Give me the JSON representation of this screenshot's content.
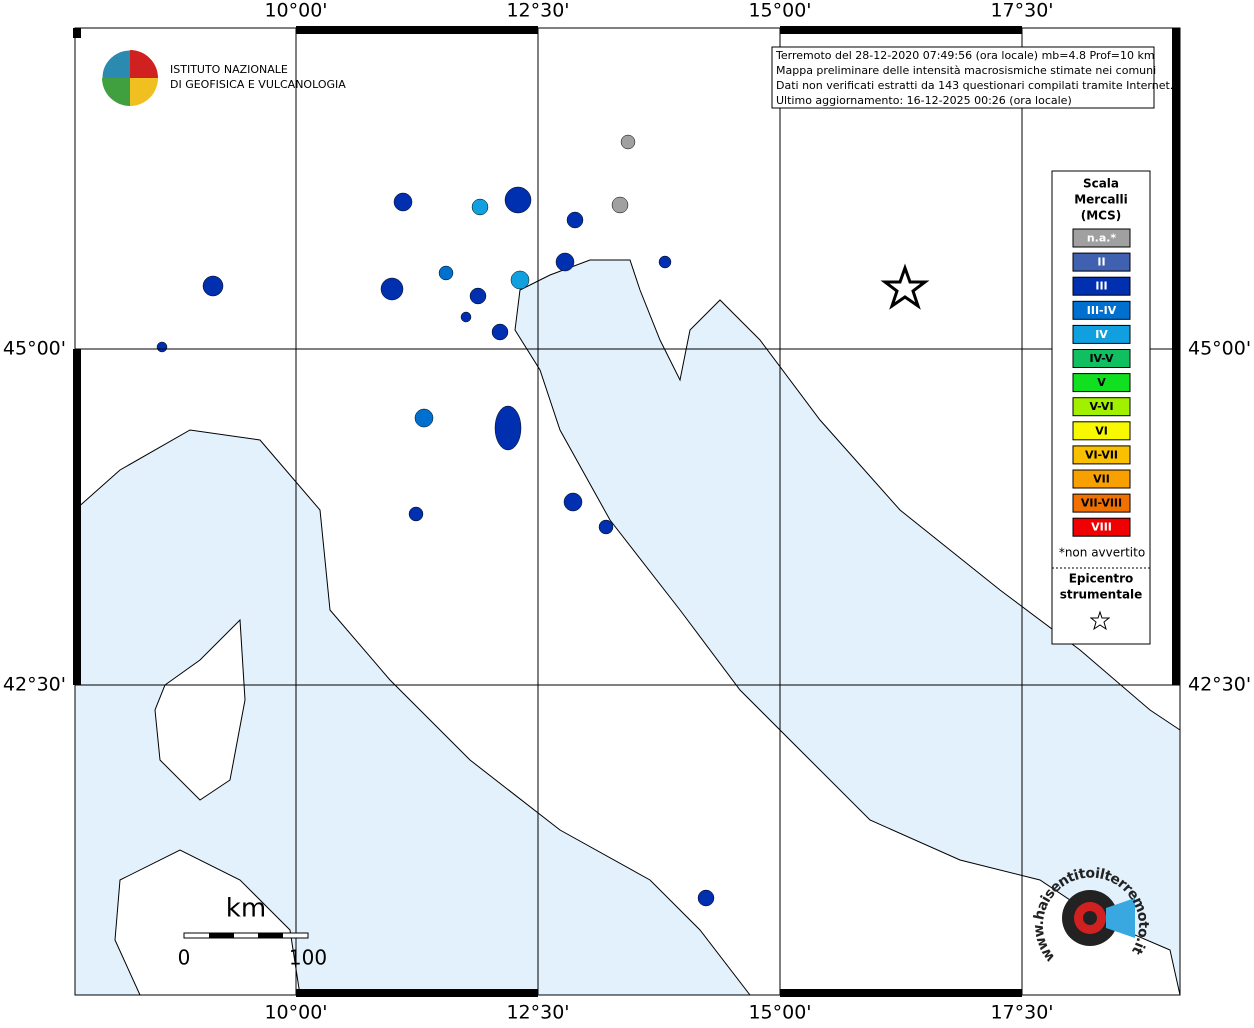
{
  "logo": {
    "line1": "ISTITUTO NAZIONALE",
    "line2": "DI GEOFISICA E VULCANOLOGIA"
  },
  "info": [
    "Terremoto del 28-12-2020 07:49:56 (ora locale) mb=4.8 Prof=10 km",
    "Mappa preliminare delle intensità macrosismiche stimate nei comuni",
    "Dati non verificati estratti da 143 questionari compilati tramite Internet.",
    "Ultimo aggiornamento: 16-12-2025 00:26 (ora locale)"
  ],
  "graticule": {
    "lon_labels": [
      "10°00'",
      "12°30'",
      "15°00'",
      "17°30'"
    ],
    "lat_labels": [
      "45°00'",
      "42°30'"
    ]
  },
  "legend": {
    "title": [
      "Scala",
      "Mercalli",
      "(MCS)"
    ],
    "items": [
      {
        "label": "n.a.*",
        "color": "#a0a0a0"
      },
      {
        "label": "II",
        "color": "#4060b0"
      },
      {
        "label": "III",
        "color": "#0030b0"
      },
      {
        "label": "III-IV",
        "color": "#0070d0"
      },
      {
        "label": "IV",
        "color": "#10a0e0"
      },
      {
        "label": "IV-V",
        "color": "#10c060"
      },
      {
        "label": "V",
        "color": "#10e020"
      },
      {
        "label": "V-VI",
        "color": "#a0f000"
      },
      {
        "label": "VI",
        "color": "#f8f800"
      },
      {
        "label": "VI-VII",
        "color": "#f8c000"
      },
      {
        "label": "VII",
        "color": "#f8a000"
      },
      {
        "label": "VII-VIII",
        "color": "#f07000"
      },
      {
        "label": "VIII",
        "color": "#f00000"
      }
    ],
    "note": "*non avvertito",
    "epicenter": [
      "Epicentro",
      "strumentale"
    ]
  },
  "scale_bar": {
    "unit": "km",
    "start": "0",
    "end": "100"
  },
  "badge": "www.haisentitoilterremoto.it"
}
